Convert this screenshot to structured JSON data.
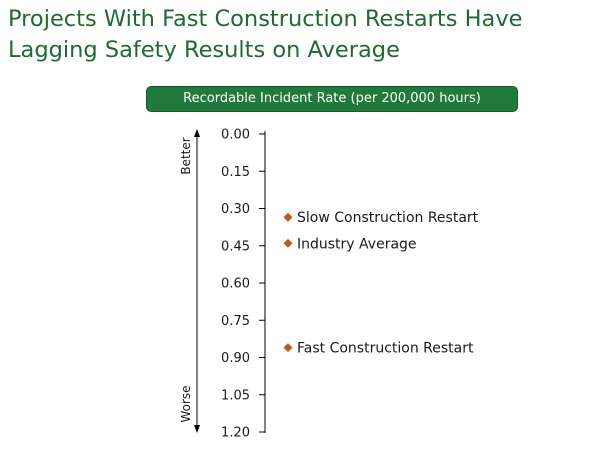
{
  "title": "Projects With Fast Construction Restarts Have Lagging Safety Results on Average",
  "chart_data": {
    "type": "scatter",
    "title": "Recordable Incident Rate (per 200,000 hours)",
    "axis": {
      "ylim": [
        0.0,
        1.2
      ],
      "inverted": true,
      "tick_labels": [
        "0.00",
        "0.15",
        "0.30",
        "0.45",
        "0.60",
        "0.75",
        "0.90",
        "1.05",
        "1.20"
      ],
      "tick_values": [
        0.0,
        0.15,
        0.3,
        0.45,
        0.6,
        0.75,
        0.9,
        1.05,
        1.2
      ],
      "direction_top": "Better",
      "direction_bottom": "Worse"
    },
    "points": [
      {
        "label": "Slow Construction Restart",
        "y": 0.335
      },
      {
        "label": "Industry Average",
        "y": 0.44
      },
      {
        "label": "Fast Construction Restart",
        "y": 0.86
      }
    ],
    "marker_color": "#c0561c",
    "grid": false,
    "legend": "none"
  }
}
